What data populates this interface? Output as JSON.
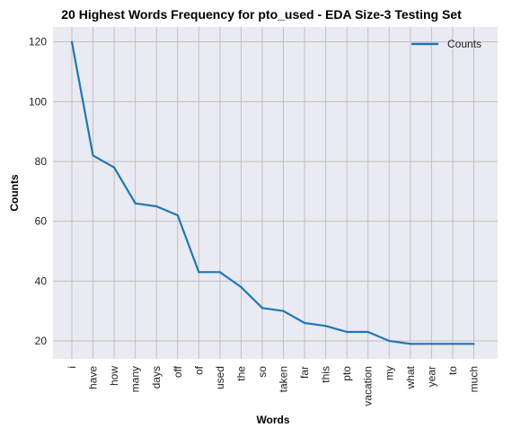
{
  "chart_data": {
    "type": "line",
    "title": "20 Highest Words Frequency for pto_used - EDA Size-3 Testing Set",
    "xlabel": "Words",
    "ylabel": "Counts",
    "categories": [
      "i",
      "have",
      "how",
      "many",
      "days",
      "off",
      "of",
      "used",
      "the",
      "so",
      "taken",
      "far",
      "this",
      "pto",
      "vacation",
      "my",
      "what",
      "year",
      "to",
      "much"
    ],
    "series": [
      {
        "name": "Counts",
        "values": [
          120,
          82,
          78,
          66,
          65,
          62,
          43,
          43,
          38,
          31,
          30,
          26,
          25,
          23,
          23,
          20,
          19,
          19,
          19,
          19
        ]
      }
    ],
    "ylim": [
      14,
      125
    ],
    "yticks": [
      20,
      40,
      60,
      80,
      100,
      120
    ],
    "grid": true,
    "legend": "top-right",
    "colors": {
      "line": "#1f77b4",
      "plot_bg": "#eaeaf2",
      "grid": "#c0c0c0"
    }
  }
}
